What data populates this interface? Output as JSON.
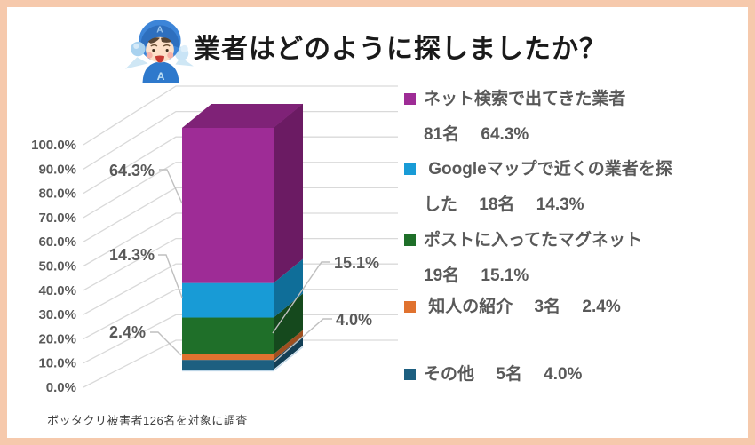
{
  "frame": {
    "border_color": "#F6C9AC",
    "background": "#FFFFFF"
  },
  "header": {
    "title": "業者はどのように探しましたか？",
    "avatar": "blue-helmet-mascot"
  },
  "footnote": {
    "text": "ボッタクリ被害者126名を対象に調査"
  },
  "chart_data": {
    "type": "bar",
    "subtype": "3d-100percent-stacked-column",
    "title": "業者はどのように探しましたか？",
    "total_count": 126,
    "ylim": [
      0,
      100
    ],
    "grid": true,
    "legend_position": "right",
    "y_ticks": [
      "100.0%",
      "90.0%",
      "80.0%",
      "70.0%",
      "60.0%",
      "50.0%",
      "40.0%",
      "30.0%",
      "20.0%",
      "10.0%",
      "0.0%"
    ],
    "categories": [
      ""
    ],
    "series": [
      {
        "name": "ネット検索で出てきた業者",
        "count": 81,
        "count_label": "81名",
        "value": 64.3,
        "label": "64.3%",
        "color": "#9E2C96",
        "side_color": "#6B1B63",
        "top_color": "#7F2277",
        "callout_side": "left"
      },
      {
        "name": "Googleマップで近くの業者を探した",
        "count": 18,
        "count_label": "18名",
        "value": 14.3,
        "label": "14.3%",
        "color": "#189BD6",
        "side_color": "#0F6E99",
        "callout_side": "left"
      },
      {
        "name": "ポストに入ってたマグネット",
        "count": 19,
        "count_label": "19名",
        "value": 15.1,
        "label": "15.1%",
        "color": "#1F6F29",
        "side_color": "#15491D",
        "callout_side": "right"
      },
      {
        "name": "知人の紹介",
        "count": 3,
        "count_label": "3名",
        "value": 2.4,
        "label": "2.4%",
        "color": "#E0722F",
        "side_color": "#9E4F1F",
        "callout_side": "left"
      },
      {
        "name": "その他",
        "count": 5,
        "count_label": "5名",
        "value": 4.0,
        "label": "4.0%",
        "color": "#1D5F80",
        "side_color": "#133F55",
        "callout_side": "right"
      }
    ],
    "stack_order_bottom_to_top": [
      "その他",
      "知人の紹介",
      "ポストに入ってたマグネット",
      "Googleマップで近くの業者を探した",
      "ネット検索で出てきた業者"
    ]
  },
  "legend": {
    "items": [
      {
        "color": "#9E2C96",
        "lines": [
          "ネット検索で出てきた業者",
          "81名　 64.3%"
        ]
      },
      {
        "color": "#189BD6",
        "lines": [
          " Googleマップで近くの業者を探",
          "した　 18名　 14.3%"
        ]
      },
      {
        "color": "#1F6F29",
        "lines": [
          "ポストに入ってたマグネット",
          "19名　 15.1%"
        ]
      },
      {
        "color": "#E0722F",
        "lines": [
          " 知人の紹介　 3名　 2.4%"
        ]
      },
      {
        "color": "#1D5F80",
        "lines": [
          "その他　 5名　 4.0%"
        ]
      }
    ]
  },
  "colors": {
    "grid": "#D9D9D9",
    "axis_text": "#595959",
    "leader_line": "#BFBFBF",
    "title_text": "#1A1A1A",
    "footnote_text": "#3F3F3F"
  }
}
